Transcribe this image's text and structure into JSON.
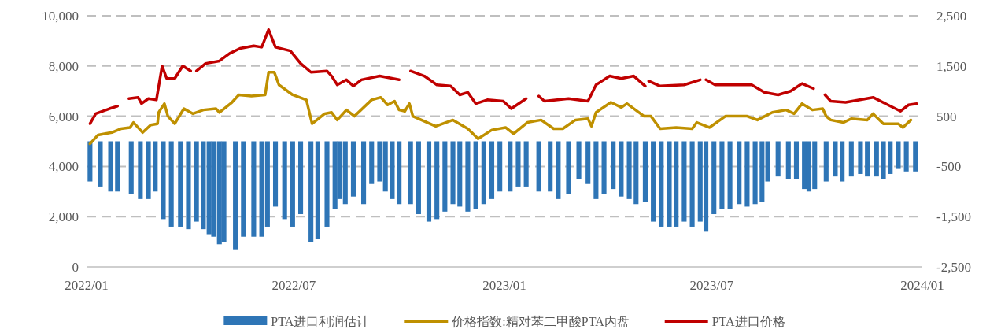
{
  "chart_data": {
    "type": "line",
    "xlim": [
      "2022-01-01",
      "2024-01-01"
    ],
    "xticks": [
      {
        "value": "2022-01-01",
        "label": "2022/01"
      },
      {
        "value": "2022-07-01",
        "label": "2022/07"
      },
      {
        "value": "2023-01-01",
        "label": "2023/01"
      },
      {
        "value": "2023-07-01",
        "label": "2023/07"
      },
      {
        "value": "2024-01-01",
        "label": "2024/01"
      }
    ],
    "ylim": [
      0,
      10000
    ],
    "yticks": [
      0,
      {
        "value": 2000,
        "label": "2,000"
      },
      {
        "value": 4000,
        "label": "4,000"
      },
      {
        "value": 6000,
        "label": "6,000"
      },
      {
        "value": 8000,
        "label": "8,000"
      },
      {
        "value": 10000,
        "label": "10,000"
      }
    ],
    "y2lim": [
      -2500,
      2500
    ],
    "y2ticks": [
      {
        "value": -2500,
        "label": "-2,500"
      },
      {
        "value": -1500,
        "label": "-1,500"
      },
      {
        "value": -500,
        "label": "-500"
      },
      500,
      {
        "value": 1500,
        "label": "1,500"
      },
      {
        "value": 2500,
        "label": "2,500"
      }
    ],
    "grid": "y",
    "legend": "bottom",
    "series": [
      {
        "name": "PTA进口利润估计",
        "type": "bar",
        "axis": "y2",
        "color": "#2e75b6",
        "x": [
          "2022-01-04",
          "2022-01-13",
          "2022-01-22",
          "2022-01-28",
          "2022-02-09",
          "2022-02-17",
          "2022-02-24",
          "2022-03-02",
          "2022-03-09",
          "2022-03-16",
          "2022-03-24",
          "2022-03-31",
          "2022-04-07",
          "2022-04-13",
          "2022-04-18",
          "2022-04-22",
          "2022-04-27",
          "2022-05-01",
          "2022-05-11",
          "2022-05-18",
          "2022-05-27",
          "2022-06-03",
          "2022-06-08",
          "2022-06-15",
          "2022-06-23",
          "2022-06-30",
          "2022-07-07",
          "2022-07-16",
          "2022-07-22",
          "2022-07-30",
          "2022-08-06",
          "2022-08-10",
          "2022-08-15",
          "2022-08-22",
          "2022-08-31",
          "2022-09-07",
          "2022-09-14",
          "2022-09-19",
          "2022-09-25",
          "2022-10-01",
          "2022-10-11",
          "2022-10-18",
          "2022-10-27",
          "2022-11-03",
          "2022-11-10",
          "2022-11-17",
          "2022-11-23",
          "2022-11-30",
          "2022-12-07",
          "2022-12-14",
          "2022-12-21",
          "2022-12-28",
          "2023-01-06",
          "2023-01-13",
          "2023-01-20",
          "2023-01-31",
          "2023-02-10",
          "2023-02-17",
          "2023-02-26",
          "2023-03-07",
          "2023-03-15",
          "2023-03-22",
          "2023-03-29",
          "2023-04-06",
          "2023-04-13",
          "2023-04-20",
          "2023-04-26",
          "2023-05-04",
          "2023-05-11",
          "2023-05-18",
          "2023-05-25",
          "2023-05-31",
          "2023-06-07",
          "2023-06-14",
          "2023-06-21",
          "2023-06-26",
          "2023-07-03",
          "2023-07-10",
          "2023-07-17",
          "2023-07-25",
          "2023-08-01",
          "2023-08-08",
          "2023-08-14",
          "2023-08-19",
          "2023-08-28",
          "2023-09-06",
          "2023-09-13",
          "2023-09-20",
          "2023-09-24",
          "2023-09-29",
          "2023-10-09",
          "2023-10-17",
          "2023-10-23",
          "2023-10-31",
          "2023-11-08",
          "2023-11-14",
          "2023-11-22",
          "2023-11-28",
          "2023-12-04",
          "2023-12-11",
          "2023-12-18",
          "2023-12-26"
        ],
        "values": [
          -800,
          -900,
          -1000,
          -1000,
          -1050,
          -1150,
          -1150,
          -1000,
          -1550,
          -1700,
          -1700,
          -1750,
          -1600,
          -1750,
          -1850,
          -1900,
          -2050,
          -2000,
          -2150,
          -1900,
          -1900,
          -1900,
          -1700,
          -1300,
          -1550,
          -1700,
          -1450,
          -2000,
          -1950,
          -1700,
          -1350,
          -1150,
          -1250,
          -1100,
          -1250,
          -850,
          -800,
          -1000,
          -1150,
          -1250,
          -1250,
          -1450,
          -1600,
          -1550,
          -1400,
          -1250,
          -1300,
          -1400,
          -1350,
          -1250,
          -1150,
          -1000,
          -1000,
          -900,
          -900,
          -1000,
          -1000,
          -1150,
          -1050,
          -750,
          -850,
          -1150,
          -1050,
          -950,
          -1100,
          -1150,
          -1250,
          -1200,
          -1600,
          -1700,
          -1700,
          -1700,
          -1600,
          -1700,
          -1600,
          -1800,
          -1450,
          -1350,
          -1350,
          -1250,
          -1300,
          -1250,
          -1200,
          -800,
          -700,
          -750,
          -750,
          -950,
          -1000,
          -950,
          -800,
          -700,
          -800,
          -700,
          -650,
          -700,
          -700,
          -750,
          -650,
          -550,
          -600,
          -600
        ]
      },
      {
        "name": "价格指数:精对苯二甲酸PTA内盘",
        "color": "#bf9000",
        "x": [
          "2022-01-04",
          "2022-01-11",
          "2022-01-23",
          "2022-01-31",
          "2022-02-08",
          "2022-02-11",
          "2022-02-19",
          "2022-02-26",
          "2022-03-04",
          "2022-03-05",
          "2022-03-10",
          "2022-03-13",
          "2022-03-19",
          "2022-03-27",
          "2022-04-04",
          "2022-04-13",
          "2022-04-24",
          "2022-04-27",
          "2022-05-08",
          "2022-05-14",
          "2022-05-25",
          "2022-06-06",
          "2022-06-09",
          "2022-06-14",
          "2022-06-18",
          "2022-06-30",
          "2022-07-12",
          "2022-07-17",
          "2022-07-28",
          "2022-08-03",
          "2022-08-08",
          "2022-08-16",
          "2022-08-23",
          "2022-09-07",
          "2022-09-15",
          "2022-09-21",
          "2022-09-27",
          "2022-10-01",
          "2022-10-06",
          "2022-10-10",
          "2022-10-13",
          "2022-11-02",
          "2022-11-17",
          "2022-11-30",
          "2022-12-09",
          "2022-12-21",
          "2023-01-02",
          "2023-01-09",
          "2023-01-21",
          "2023-02-02",
          "2023-02-13",
          "2023-02-21",
          "2023-03-04",
          "2023-03-15",
          "2023-03-18",
          "2023-03-22",
          "2023-04-04",
          "2023-04-13",
          "2023-04-18",
          "2023-05-03",
          "2023-05-09",
          "2023-05-17",
          "2023-05-31",
          "2023-06-14",
          "2023-06-18",
          "2023-06-29",
          "2023-07-13",
          "2023-08-01",
          "2023-08-10",
          "2023-08-23",
          "2023-09-04",
          "2023-09-11",
          "2023-09-18",
          "2023-09-27",
          "2023-10-06",
          "2023-10-09",
          "2023-10-13",
          "2023-10-24",
          "2023-10-31",
          "2023-11-14",
          "2023-11-19",
          "2023-11-28",
          "2023-12-11",
          "2023-12-15",
          "2023-12-22"
        ],
        "values": [
          4900,
          5250,
          5350,
          5500,
          5550,
          5750,
          5350,
          5650,
          5700,
          6150,
          6500,
          6000,
          5700,
          6300,
          6100,
          6250,
          6300,
          6150,
          6550,
          6850,
          6800,
          6850,
          7750,
          7750,
          7250,
          6850,
          6650,
          5700,
          6100,
          6150,
          5850,
          6250,
          6000,
          6650,
          6750,
          6450,
          6600,
          6250,
          6200,
          6500,
          6000,
          5600,
          5850,
          5500,
          5100,
          5450,
          5550,
          5300,
          5750,
          5850,
          5500,
          5500,
          5850,
          5900,
          5600,
          6150,
          6550,
          6350,
          6500,
          6000,
          6000,
          5500,
          5550,
          5500,
          5750,
          5550,
          6000,
          6000,
          5850,
          6150,
          6250,
          6100,
          6500,
          6250,
          6300,
          6000,
          5850,
          5750,
          5900,
          5850,
          6100,
          5700,
          5700,
          5550,
          5850
        ]
      },
      {
        "name": "PTA进口价格",
        "color": "#c00000",
        "x": [
          "2022-01-04",
          "2022-01-09",
          "2022-01-21",
          "2022-01-28"
        ],
        "values": [
          5700,
          6100,
          6300,
          6400
        ]
      },
      {
        "color": "#c00000",
        "x": [
          "2022-02-07",
          "2022-02-15",
          "2022-02-18",
          "2022-02-24",
          "2022-03-03",
          "2022-03-08",
          "2022-03-12",
          "2022-03-19",
          "2022-03-26",
          "2022-04-02"
        ],
        "values": [
          6700,
          6750,
          6500,
          6700,
          6650,
          8000,
          7500,
          7500,
          8000,
          7800
        ]
      },
      {
        "color": "#c00000",
        "x": [
          "2022-04-07",
          "2022-04-15",
          "2022-04-27",
          "2022-05-06",
          "2022-05-15",
          "2022-05-27",
          "2022-06-03",
          "2022-06-09",
          "2022-06-15",
          "2022-06-28",
          "2022-07-07",
          "2022-07-16",
          "2022-07-30",
          "2022-08-03",
          "2022-08-08",
          "2022-08-16",
          "2022-08-22",
          "2022-08-29",
          "2022-09-14",
          "2022-10-01"
        ],
        "values": [
          7800,
          8100,
          8200,
          8500,
          8700,
          8800,
          8750,
          9450,
          8750,
          8600,
          8100,
          7750,
          7800,
          7600,
          7250,
          7450,
          7200,
          7450,
          7600,
          7450
        ]
      },
      {
        "color": "#c00000",
        "x": [
          "2022-10-11",
          "2022-10-23",
          "2022-11-03",
          "2022-11-15",
          "2022-11-23",
          "2022-11-30",
          "2022-12-07",
          "2022-12-17",
          "2022-12-31",
          "2023-01-07",
          "2023-01-20"
        ],
        "values": [
          7800,
          7600,
          7250,
          7200,
          6850,
          6950,
          6500,
          6650,
          6600,
          6300,
          6700
        ]
      },
      {
        "color": "#c00000",
        "x": [
          "2023-01-31",
          "2023-02-05",
          "2023-02-26",
          "2023-03-15",
          "2023-03-22",
          "2023-04-03",
          "2023-04-13",
          "2023-04-24",
          "2023-05-04"
        ],
        "values": [
          6800,
          6600,
          6700,
          6600,
          7250,
          7600,
          7500,
          7600,
          7200
        ]
      },
      {
        "color": "#c00000",
        "x": [
          "2023-05-07",
          "2023-05-17",
          "2023-06-07",
          "2023-06-21"
        ],
        "values": [
          7400,
          7200,
          7250,
          7450
        ]
      },
      {
        "color": "#c00000",
        "x": [
          "2023-06-26",
          "2023-07-04",
          "2023-08-05",
          "2023-08-16",
          "2023-08-28",
          "2023-09-08",
          "2023-09-18",
          "2023-09-28"
        ],
        "values": [
          7450,
          7250,
          7250,
          6950,
          6850,
          7000,
          7300,
          7100
        ]
      },
      {
        "color": "#c00000",
        "x": [
          "2023-10-08",
          "2023-10-13",
          "2023-10-26",
          "2023-11-19",
          "2023-12-02",
          "2023-12-13",
          "2023-12-20",
          "2023-12-27"
        ],
        "values": [
          6850,
          6600,
          6550,
          6750,
          6450,
          6200,
          6450,
          6500
        ]
      }
    ]
  }
}
